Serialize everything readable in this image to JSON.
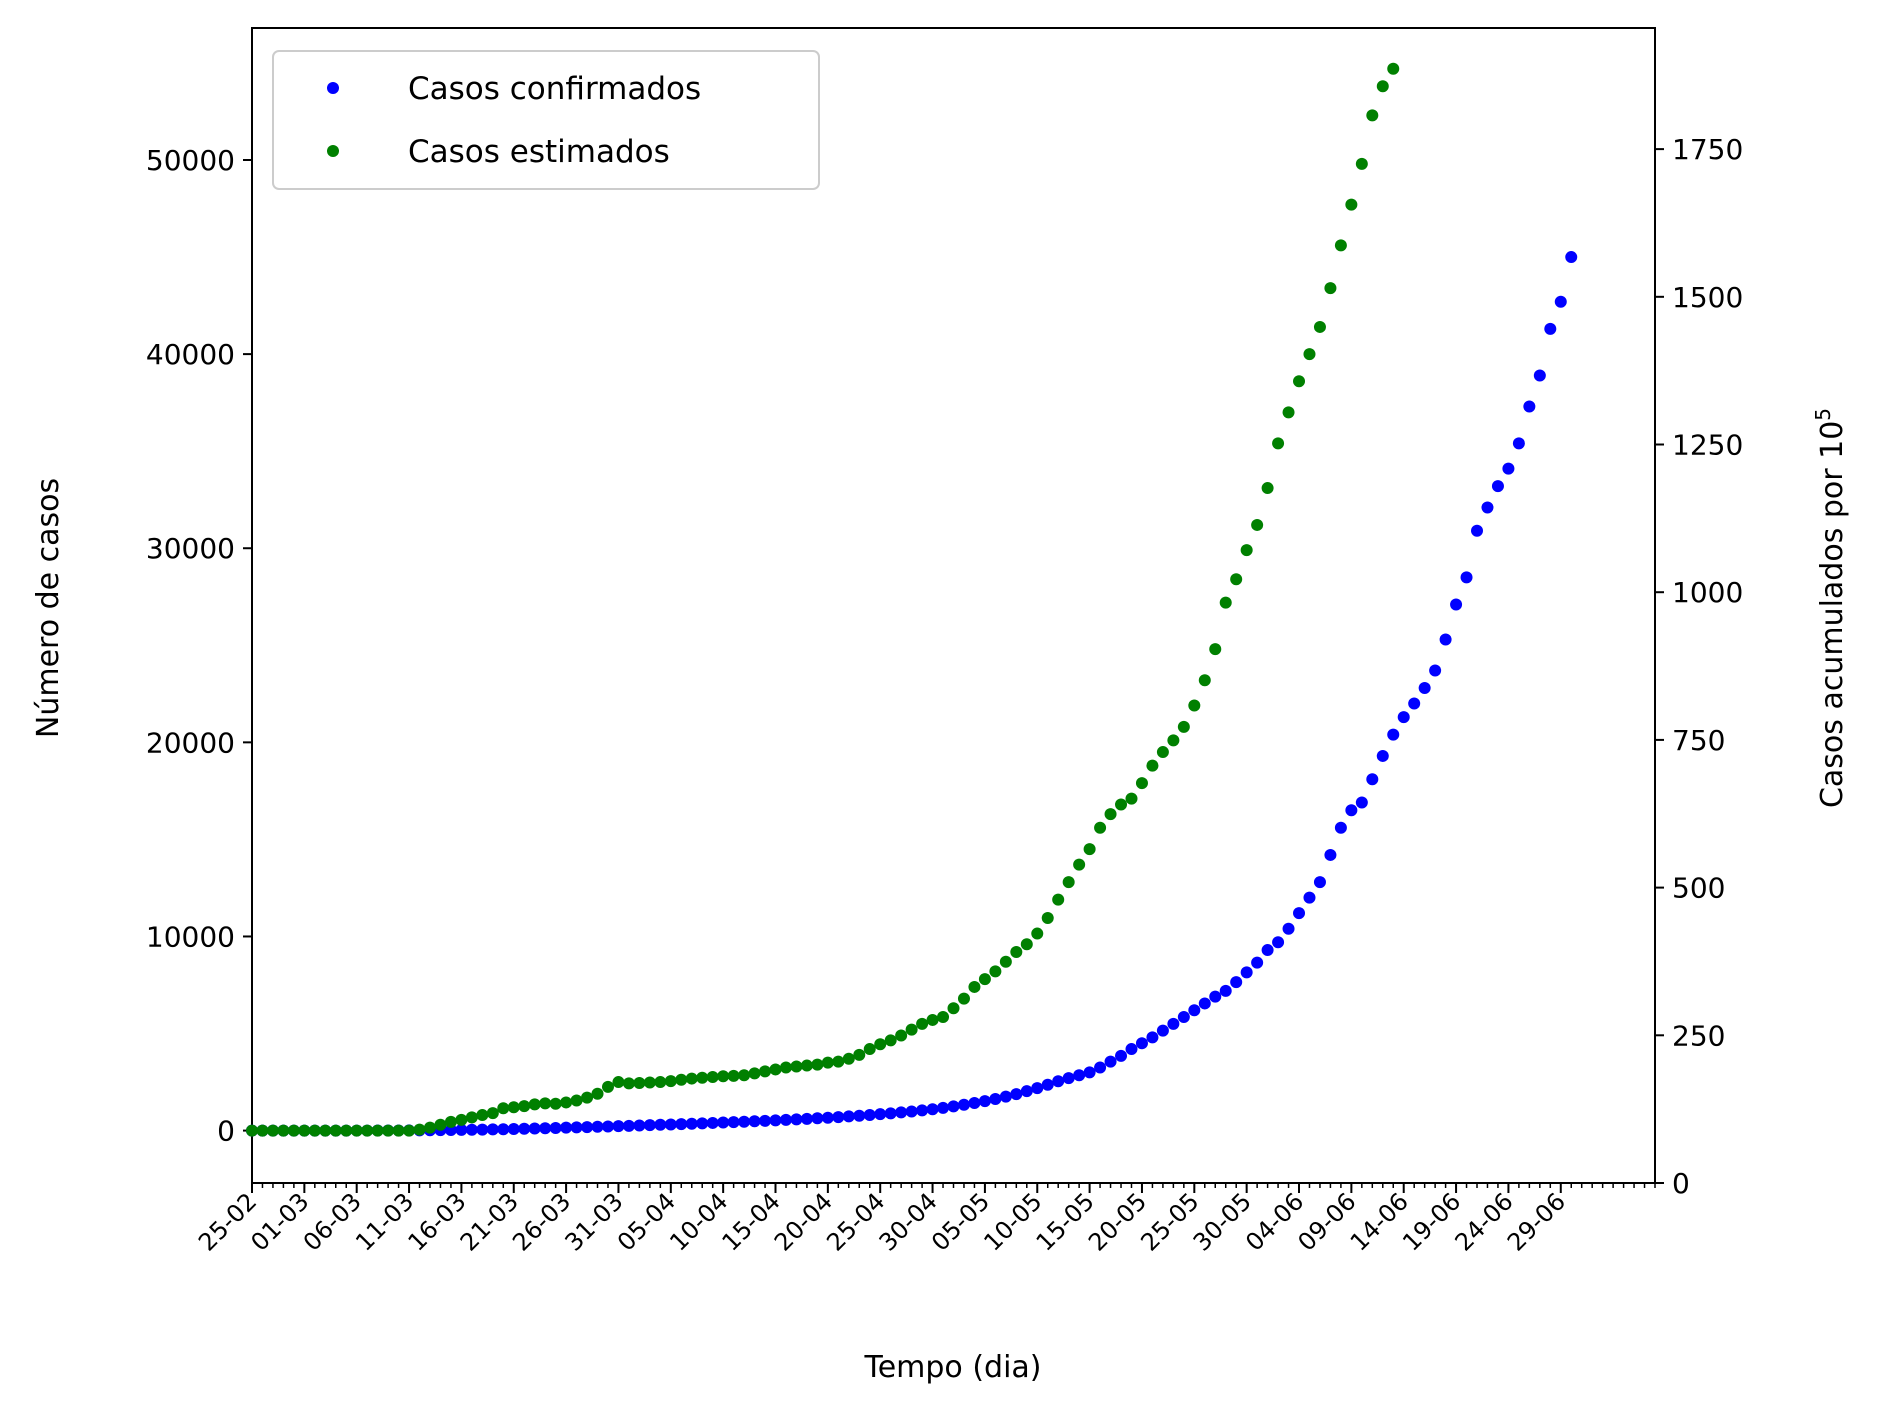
{
  "chart_data": {
    "type": "scatter",
    "xlabel": "Tempo (dia)",
    "ylabel": "Número de casos",
    "y2label_base": "Casos acumulados por 10",
    "y2label_exp": "5",
    "x_tick_labels": [
      "25-02",
      "01-03",
      "06-03",
      "11-03",
      "16-03",
      "21-03",
      "26-03",
      "31-03",
      "05-04",
      "10-04",
      "15-04",
      "20-04",
      "25-04",
      "30-04",
      "05-05",
      "10-05",
      "15-05",
      "20-05",
      "25-05",
      "30-05",
      "04-06",
      "09-06",
      "14-06",
      "19-06",
      "24-06",
      "29-06"
    ],
    "x_tick_interval_days": 5,
    "x_minor_tick_interval_days": 1,
    "x_first_date": "2020-02-25",
    "x_last_date_shown": "2020-07-08",
    "y_ticks": [
      0,
      10000,
      20000,
      30000,
      40000,
      50000
    ],
    "y2_ticks": [
      0,
      250,
      500,
      750,
      1000,
      1250,
      1500,
      1750
    ],
    "ylim": [
      -2700,
      56800
    ],
    "y2lim": [
      0,
      1955
    ],
    "legend": {
      "position": "upper left"
    },
    "series": [
      {
        "name": "Casos confirmados",
        "color": "#0000ff",
        "points": [
          [
            "2020-02-25",
            0
          ],
          [
            "2020-02-26",
            0
          ],
          [
            "2020-02-27",
            0
          ],
          [
            "2020-02-28",
            0
          ],
          [
            "2020-02-29",
            0
          ],
          [
            "2020-03-01",
            0
          ],
          [
            "2020-03-02",
            0
          ],
          [
            "2020-03-03",
            0
          ],
          [
            "2020-03-04",
            0
          ],
          [
            "2020-03-05",
            0
          ],
          [
            "2020-03-06",
            1
          ],
          [
            "2020-03-07",
            1
          ],
          [
            "2020-03-08",
            2
          ],
          [
            "2020-03-09",
            3
          ],
          [
            "2020-03-10",
            5
          ],
          [
            "2020-03-11",
            8
          ],
          [
            "2020-03-12",
            12
          ],
          [
            "2020-03-13",
            16
          ],
          [
            "2020-03-14",
            22
          ],
          [
            "2020-03-15",
            28
          ],
          [
            "2020-03-16",
            35
          ],
          [
            "2020-03-17",
            42
          ],
          [
            "2020-03-18",
            50
          ],
          [
            "2020-03-19",
            60
          ],
          [
            "2020-03-20",
            70
          ],
          [
            "2020-03-21",
            82
          ],
          [
            "2020-03-22",
            95
          ],
          [
            "2020-03-23",
            108
          ],
          [
            "2020-03-24",
            122
          ],
          [
            "2020-03-25",
            136
          ],
          [
            "2020-03-26",
            150
          ],
          [
            "2020-03-27",
            165
          ],
          [
            "2020-03-28",
            180
          ],
          [
            "2020-03-29",
            196
          ],
          [
            "2020-03-30",
            212
          ],
          [
            "2020-03-31",
            228
          ],
          [
            "2020-04-01",
            245
          ],
          [
            "2020-04-02",
            262
          ],
          [
            "2020-04-03",
            280
          ],
          [
            "2020-04-04",
            298
          ],
          [
            "2020-04-05",
            316
          ],
          [
            "2020-04-06",
            335
          ],
          [
            "2020-04-07",
            354
          ],
          [
            "2020-04-08",
            374
          ],
          [
            "2020-04-09",
            394
          ],
          [
            "2020-04-10",
            415
          ],
          [
            "2020-04-11",
            436
          ],
          [
            "2020-04-12",
            458
          ],
          [
            "2020-04-13",
            480
          ],
          [
            "2020-04-14",
            503
          ],
          [
            "2020-04-15",
            527
          ],
          [
            "2020-04-16",
            552
          ],
          [
            "2020-04-17",
            578
          ],
          [
            "2020-04-18",
            605
          ],
          [
            "2020-04-19",
            634
          ],
          [
            "2020-04-20",
            664
          ],
          [
            "2020-04-21",
            696
          ],
          [
            "2020-04-22",
            730
          ],
          [
            "2020-04-23",
            766
          ],
          [
            "2020-04-24",
            804
          ],
          [
            "2020-04-25",
            845
          ],
          [
            "2020-04-26",
            889
          ],
          [
            "2020-04-27",
            936
          ],
          [
            "2020-04-28",
            986
          ],
          [
            "2020-04-29",
            1040
          ],
          [
            "2020-04-30",
            1100
          ],
          [
            "2020-05-01",
            1170
          ],
          [
            "2020-05-02",
            1250
          ],
          [
            "2020-05-03",
            1330
          ],
          [
            "2020-05-04",
            1420
          ],
          [
            "2020-05-05",
            1520
          ],
          [
            "2020-05-06",
            1630
          ],
          [
            "2020-05-07",
            1750
          ],
          [
            "2020-05-08",
            1880
          ],
          [
            "2020-05-09",
            2030
          ],
          [
            "2020-05-10",
            2190
          ],
          [
            "2020-05-11",
            2360
          ],
          [
            "2020-05-12",
            2540
          ],
          [
            "2020-05-13",
            2700
          ],
          [
            "2020-05-14",
            2850
          ],
          [
            "2020-05-15",
            3000
          ],
          [
            "2020-05-16",
            3250
          ],
          [
            "2020-05-17",
            3550
          ],
          [
            "2020-05-18",
            3850
          ],
          [
            "2020-05-19",
            4200
          ],
          [
            "2020-05-20",
            4500
          ],
          [
            "2020-05-21",
            4800
          ],
          [
            "2020-05-22",
            5150
          ],
          [
            "2020-05-23",
            5500
          ],
          [
            "2020-05-24",
            5850
          ],
          [
            "2020-05-25",
            6200
          ],
          [
            "2020-05-26",
            6550
          ],
          [
            "2020-05-27",
            6900
          ],
          [
            "2020-05-28",
            7200
          ],
          [
            "2020-05-29",
            7650
          ],
          [
            "2020-05-30",
            8150
          ],
          [
            "2020-05-31",
            8650
          ],
          [
            "2020-06-01",
            9300
          ],
          [
            "2020-06-02",
            9700
          ],
          [
            "2020-06-03",
            10400
          ],
          [
            "2020-06-04",
            11200
          ],
          [
            "2020-06-05",
            12000
          ],
          [
            "2020-06-06",
            12800
          ],
          [
            "2020-06-07",
            14200
          ],
          [
            "2020-06-08",
            15600
          ],
          [
            "2020-06-09",
            16500
          ],
          [
            "2020-06-10",
            16900
          ],
          [
            "2020-06-11",
            18100
          ],
          [
            "2020-06-12",
            19300
          ],
          [
            "2020-06-13",
            20400
          ],
          [
            "2020-06-14",
            21300
          ],
          [
            "2020-06-15",
            22000
          ],
          [
            "2020-06-16",
            22800
          ],
          [
            "2020-06-17",
            23700
          ],
          [
            "2020-06-18",
            25300
          ],
          [
            "2020-06-19",
            27100
          ],
          [
            "2020-06-20",
            28500
          ],
          [
            "2020-06-21",
            30900
          ],
          [
            "2020-06-22",
            32100
          ],
          [
            "2020-06-23",
            33200
          ],
          [
            "2020-06-24",
            34100
          ],
          [
            "2020-06-25",
            35400
          ],
          [
            "2020-06-26",
            37300
          ],
          [
            "2020-06-27",
            38900
          ],
          [
            "2020-06-28",
            41300
          ],
          [
            "2020-06-29",
            42700
          ],
          [
            "2020-06-30",
            45000
          ]
        ]
      },
      {
        "name": "Casos estimados",
        "color": "#008000",
        "points": [
          [
            "2020-02-25",
            0
          ],
          [
            "2020-02-26",
            0
          ],
          [
            "2020-02-27",
            0
          ],
          [
            "2020-02-28",
            0
          ],
          [
            "2020-02-29",
            0
          ],
          [
            "2020-03-01",
            0
          ],
          [
            "2020-03-02",
            0
          ],
          [
            "2020-03-03",
            0
          ],
          [
            "2020-03-04",
            0
          ],
          [
            "2020-03-05",
            0
          ],
          [
            "2020-03-06",
            0
          ],
          [
            "2020-03-07",
            0
          ],
          [
            "2020-03-08",
            0
          ],
          [
            "2020-03-09",
            0
          ],
          [
            "2020-03-10",
            0
          ],
          [
            "2020-03-11",
            0
          ],
          [
            "2020-03-12",
            50
          ],
          [
            "2020-03-13",
            150
          ],
          [
            "2020-03-14",
            300
          ],
          [
            "2020-03-15",
            450
          ],
          [
            "2020-03-16",
            550
          ],
          [
            "2020-03-17",
            680
          ],
          [
            "2020-03-18",
            800
          ],
          [
            "2020-03-19",
            900
          ],
          [
            "2020-03-20",
            1150
          ],
          [
            "2020-03-21",
            1200
          ],
          [
            "2020-03-22",
            1260
          ],
          [
            "2020-03-23",
            1350
          ],
          [
            "2020-03-24",
            1400
          ],
          [
            "2020-03-25",
            1380
          ],
          [
            "2020-03-26",
            1450
          ],
          [
            "2020-03-27",
            1550
          ],
          [
            "2020-03-28",
            1700
          ],
          [
            "2020-03-29",
            1900
          ],
          [
            "2020-03-30",
            2250
          ],
          [
            "2020-03-31",
            2500
          ],
          [
            "2020-04-01",
            2430
          ],
          [
            "2020-04-02",
            2450
          ],
          [
            "2020-04-03",
            2480
          ],
          [
            "2020-04-04",
            2500
          ],
          [
            "2020-04-05",
            2550
          ],
          [
            "2020-04-06",
            2620
          ],
          [
            "2020-04-07",
            2680
          ],
          [
            "2020-04-08",
            2720
          ],
          [
            "2020-04-09",
            2760
          ],
          [
            "2020-04-10",
            2800
          ],
          [
            "2020-04-11",
            2820
          ],
          [
            "2020-04-12",
            2850
          ],
          [
            "2020-04-13",
            2950
          ],
          [
            "2020-04-14",
            3050
          ],
          [
            "2020-04-15",
            3150
          ],
          [
            "2020-04-16",
            3250
          ],
          [
            "2020-04-17",
            3300
          ],
          [
            "2020-04-18",
            3350
          ],
          [
            "2020-04-19",
            3400
          ],
          [
            "2020-04-20",
            3500
          ],
          [
            "2020-04-21",
            3550
          ],
          [
            "2020-04-22",
            3700
          ],
          [
            "2020-04-23",
            3900
          ],
          [
            "2020-04-24",
            4200
          ],
          [
            "2020-04-25",
            4450
          ],
          [
            "2020-04-26",
            4650
          ],
          [
            "2020-04-27",
            4900
          ],
          [
            "2020-04-28",
            5200
          ],
          [
            "2020-04-29",
            5500
          ],
          [
            "2020-04-30",
            5700
          ],
          [
            "2020-05-01",
            5850
          ],
          [
            "2020-05-02",
            6300
          ],
          [
            "2020-05-03",
            6800
          ],
          [
            "2020-05-04",
            7400
          ],
          [
            "2020-05-05",
            7800
          ],
          [
            "2020-05-06",
            8200
          ],
          [
            "2020-05-07",
            8700
          ],
          [
            "2020-05-08",
            9200
          ],
          [
            "2020-05-09",
            9600
          ],
          [
            "2020-05-10",
            10150
          ],
          [
            "2020-05-11",
            10950
          ],
          [
            "2020-05-12",
            11900
          ],
          [
            "2020-05-13",
            12800
          ],
          [
            "2020-05-14",
            13700
          ],
          [
            "2020-05-15",
            14500
          ],
          [
            "2020-05-16",
            15600
          ],
          [
            "2020-05-17",
            16300
          ],
          [
            "2020-05-18",
            16800
          ],
          [
            "2020-05-19",
            17100
          ],
          [
            "2020-05-20",
            17900
          ],
          [
            "2020-05-21",
            18800
          ],
          [
            "2020-05-22",
            19500
          ],
          [
            "2020-05-23",
            20100
          ],
          [
            "2020-05-24",
            20800
          ],
          [
            "2020-05-25",
            21900
          ],
          [
            "2020-05-26",
            23200
          ],
          [
            "2020-05-27",
            24800
          ],
          [
            "2020-05-28",
            27200
          ],
          [
            "2020-05-29",
            28400
          ],
          [
            "2020-05-30",
            29900
          ],
          [
            "2020-05-31",
            31200
          ],
          [
            "2020-06-01",
            33100
          ],
          [
            "2020-06-02",
            35400
          ],
          [
            "2020-06-03",
            37000
          ],
          [
            "2020-06-04",
            38600
          ],
          [
            "2020-06-05",
            40000
          ],
          [
            "2020-06-06",
            41400
          ],
          [
            "2020-06-07",
            43400
          ],
          [
            "2020-06-08",
            45600
          ],
          [
            "2020-06-09",
            47700
          ],
          [
            "2020-06-10",
            49800
          ],
          [
            "2020-06-11",
            52300
          ],
          [
            "2020-06-12",
            53800
          ],
          [
            "2020-06-13",
            54700
          ]
        ]
      }
    ]
  }
}
